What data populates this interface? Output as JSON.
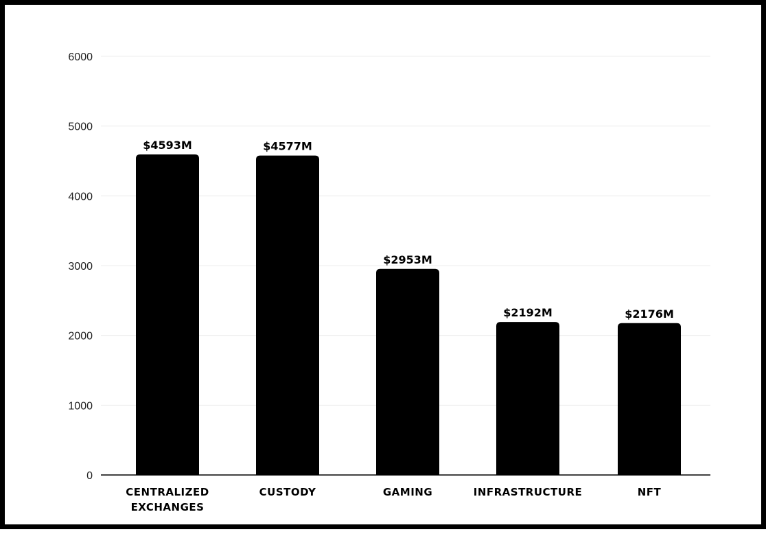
{
  "chart_data": {
    "type": "bar",
    "categories": [
      [
        "CENTRALIZED",
        "EXCHANGES"
      ],
      [
        "CUSTODY"
      ],
      [
        "GAMING"
      ],
      [
        "INFRASTRUCTURE"
      ],
      [
        "NFT"
      ]
    ],
    "values": [
      4593,
      4577,
      2953,
      2192,
      2176
    ],
    "data_labels": [
      "$4593M",
      "$4577M",
      "$2953M",
      "$2192M",
      "$2176M"
    ],
    "yticks": [
      "0",
      "1000",
      "2000",
      "3000",
      "4000",
      "5000",
      "6000"
    ],
    "ylim": [
      0,
      6000
    ],
    "grid": true,
    "bar_color": "#000000"
  }
}
